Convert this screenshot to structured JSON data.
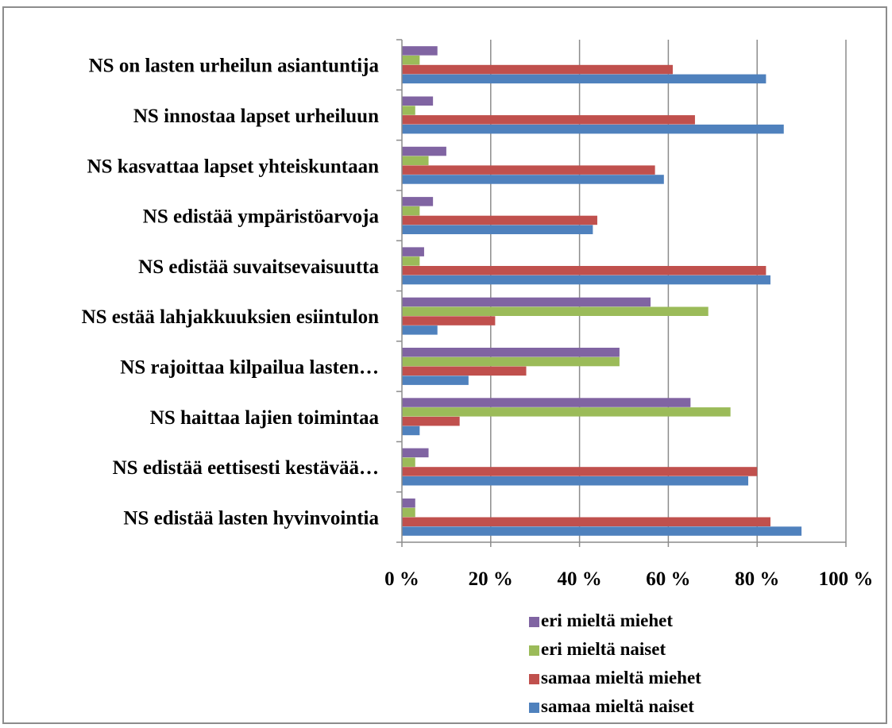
{
  "chart_data": {
    "type": "bar",
    "orientation": "horizontal",
    "categories": [
      "NS on lasten urheilun asiantuntija",
      "NS innostaa lapset urheiluun",
      "NS kasvattaa lapset yhteiskuntaan",
      "NS edistää ympäristöarvoja",
      "NS edistää suvaitsevaisuutta",
      "NS estää lahjakkuuksien esiintulon",
      "NS rajoittaa kilpailua lasten…",
      "NS haittaa lajien toimintaa",
      "NS edistää eettisesti kestävää…",
      "NS edistää lasten hyvinvointia"
    ],
    "series": [
      {
        "name": "eri mieltä miehet",
        "color": "#8064a2",
        "values": [
          8,
          7,
          10,
          7,
          5,
          56,
          49,
          65,
          6,
          3
        ]
      },
      {
        "name": "eri mieltä naiset",
        "color": "#9bbb59",
        "values": [
          4,
          3,
          6,
          4,
          4,
          69,
          49,
          74,
          3,
          3
        ]
      },
      {
        "name": "samaa mieltä miehet",
        "color": "#c0504d",
        "values": [
          61,
          66,
          57,
          44,
          82,
          21,
          28,
          13,
          80,
          83
        ]
      },
      {
        "name": "samaa mieltä naiset",
        "color": "#4f81bd",
        "values": [
          82,
          86,
          59,
          43,
          83,
          8,
          15,
          4,
          78,
          90
        ]
      }
    ],
    "xlim": [
      0,
      100
    ],
    "xticks": [
      "0 %",
      "20 %",
      "40 %",
      "60 %",
      "80 %",
      "100 %"
    ],
    "grid": true,
    "legend": "bottom-right"
  }
}
